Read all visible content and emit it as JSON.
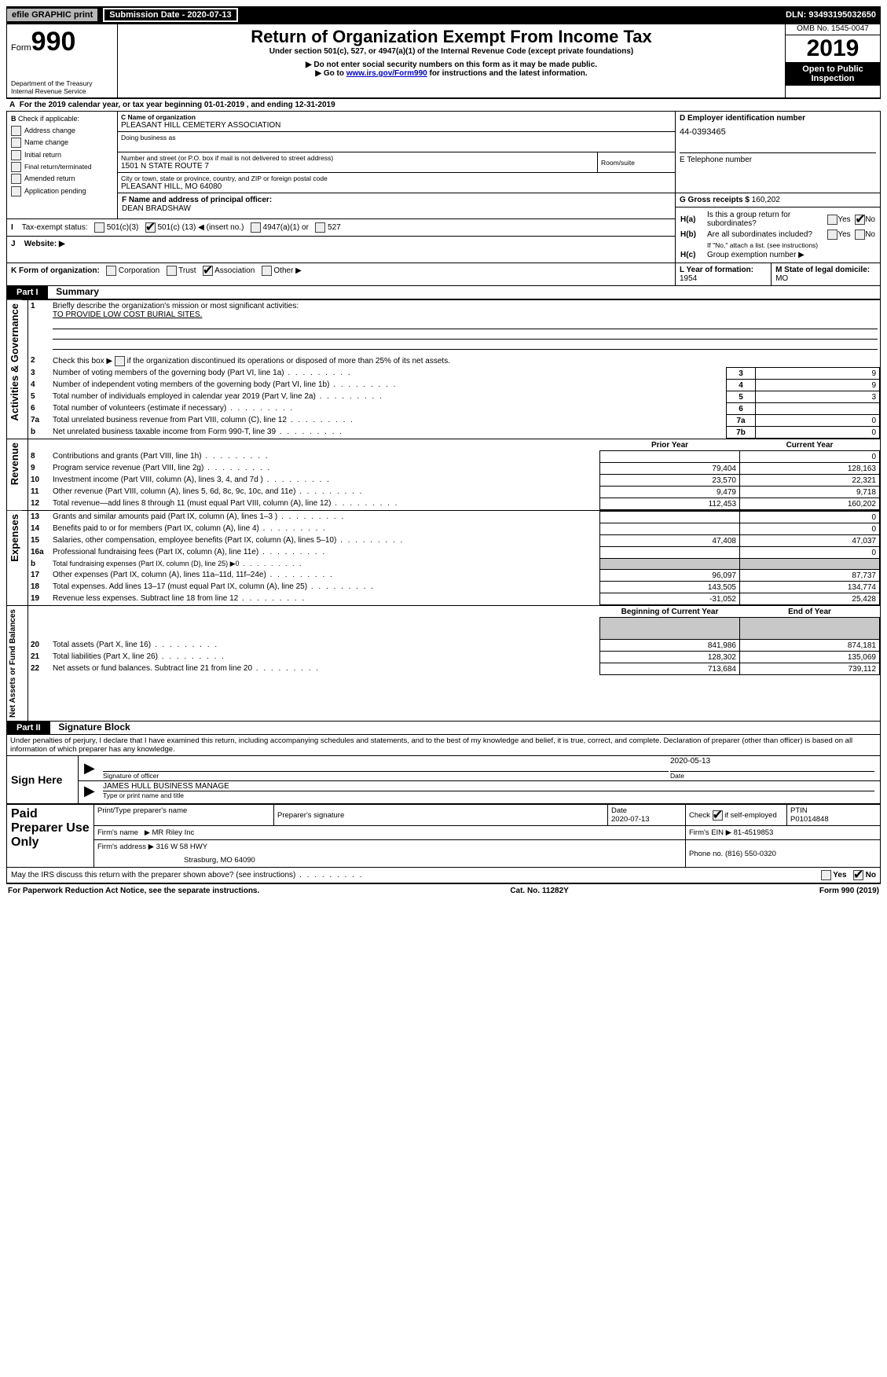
{
  "topbar": {
    "efile": "efile GRAPHIC print",
    "submission": "Submission Date - 2020-07-13",
    "dln": "DLN: 93493195032650"
  },
  "header": {
    "form_prefix": "Form",
    "form_num": "990",
    "dept": "Department of the Treasury",
    "irs": "Internal Revenue Service",
    "title": "Return of Organization Exempt From Income Tax",
    "sub1": "Under section 501(c), 527, or 4947(a)(1) of the Internal Revenue Code (except private foundations)",
    "sub2": "▶ Do not enter social security numbers on this form as it may be made public.",
    "sub3_pre": "▶ Go to ",
    "sub3_link": "www.irs.gov/Form990",
    "sub3_post": " for instructions and the latest information.",
    "omb": "OMB No. 1545-0047",
    "year": "2019",
    "open_public": "Open to Public Inspection"
  },
  "A": {
    "text_pre": "For the 2019 calendar year, or tax year beginning ",
    "begin": "01-01-2019",
    "mid": " , and ending ",
    "end": "12-31-2019"
  },
  "B": {
    "heading": "Check if applicable:",
    "items": [
      "Address change",
      "Name change",
      "Initial return",
      "Final return/terminated",
      "Amended return",
      "Application pending"
    ]
  },
  "C": {
    "label": "C Name of organization",
    "name": "PLEASANT HILL CEMETERY ASSOCIATION",
    "dba_label": "Doing business as",
    "street_label": "Number and street (or P.O. box if mail is not delivered to street address)",
    "street": "1501 N STATE ROUTE 7",
    "room_label": "Room/suite",
    "city_label": "City or town, state or province, country, and ZIP or foreign postal code",
    "city": "PLEASANT HILL, MO  64080"
  },
  "D": {
    "label": "D Employer identification number",
    "value": "44-0393465"
  },
  "E": {
    "label": "E Telephone number",
    "value": ""
  },
  "F": {
    "label": "F  Name and address of principal officer:",
    "value": "DEAN BRADSHAW"
  },
  "G": {
    "label": "G Gross receipts $",
    "value": "160,202"
  },
  "H": {
    "a_label": "Is this a group return for subordinates?",
    "b_label": "Are all subordinates included?",
    "b_note": "If \"No,\" attach a list. (see instructions)",
    "c_label": "Group exemption number ▶",
    "yes": "Yes",
    "no": "No"
  },
  "I": {
    "label": "Tax-exempt status:",
    "opts": {
      "o1": "501(c)(3)",
      "o2_pre": "501(c) (",
      "o2_val": "13",
      "o2_post": ") ◀ (insert no.)",
      "o3": "4947(a)(1) or",
      "o4": "527"
    }
  },
  "J": {
    "label": "Website: ▶"
  },
  "K": {
    "label": "K Form of organization:",
    "opts": [
      "Corporation",
      "Trust",
      "Association",
      "Other ▶"
    ]
  },
  "L": {
    "label": "L Year of formation:",
    "value": "1954"
  },
  "M": {
    "label": "M State of legal domicile:",
    "value": "MO"
  },
  "part1": {
    "header": "Part I",
    "title": "Summary",
    "l1_label": "Briefly describe the organization's mission or most significant activities:",
    "l1_text": "TO PROVIDE LOW COST BURIAL SITES.",
    "l2_label": "Check this box ▶",
    "l2_post": " if the organization discontinued its operations or disposed of more than 25% of its net assets.",
    "rows_gov": [
      {
        "n": "3",
        "label": "Number of voting members of the governing body (Part VI, line 1a)",
        "box": "3",
        "val": "9"
      },
      {
        "n": "4",
        "label": "Number of independent voting members of the governing body (Part VI, line 1b)",
        "box": "4",
        "val": "9"
      },
      {
        "n": "5",
        "label": "Total number of individuals employed in calendar year 2019 (Part V, line 2a)",
        "box": "5",
        "val": "3"
      },
      {
        "n": "6",
        "label": "Total number of volunteers (estimate if necessary)",
        "box": "6",
        "val": ""
      },
      {
        "n": "7a",
        "label": "Total unrelated business revenue from Part VIII, column (C), line 12",
        "box": "7a",
        "val": "0"
      },
      {
        "n": "b",
        "label": "Net unrelated business taxable income from Form 990-T, line 39",
        "box": "7b",
        "val": "0"
      }
    ],
    "hdr_prior": "Prior Year",
    "hdr_curr": "Current Year",
    "rows_rev": [
      {
        "n": "8",
        "label": "Contributions and grants (Part VIII, line 1h)",
        "py": "",
        "cy": "0"
      },
      {
        "n": "9",
        "label": "Program service revenue (Part VIII, line 2g)",
        "py": "79,404",
        "cy": "128,163"
      },
      {
        "n": "10",
        "label": "Investment income (Part VIII, column (A), lines 3, 4, and 7d )",
        "py": "23,570",
        "cy": "22,321"
      },
      {
        "n": "11",
        "label": "Other revenue (Part VIII, column (A), lines 5, 6d, 8c, 9c, 10c, and 11e)",
        "py": "9,479",
        "cy": "9,718"
      },
      {
        "n": "12",
        "label": "Total revenue—add lines 8 through 11 (must equal Part VIII, column (A), line 12)",
        "py": "112,453",
        "cy": "160,202"
      }
    ],
    "rows_exp": [
      {
        "n": "13",
        "label": "Grants and similar amounts paid (Part IX, column (A), lines 1–3 )",
        "py": "",
        "cy": "0"
      },
      {
        "n": "14",
        "label": "Benefits paid to or for members (Part IX, column (A), line 4)",
        "py": "",
        "cy": "0"
      },
      {
        "n": "15",
        "label": "Salaries, other compensation, employee benefits (Part IX, column (A), lines 5–10)",
        "py": "47,408",
        "cy": "47,037"
      },
      {
        "n": "16a",
        "label": "Professional fundraising fees (Part IX, column (A), line 11e)",
        "py": "",
        "cy": "0"
      },
      {
        "n": "b",
        "label": "Total fundraising expenses (Part IX, column (D), line 25) ▶0",
        "py": "GREY",
        "cy": "GREY"
      },
      {
        "n": "17",
        "label": "Other expenses (Part IX, column (A), lines 11a–11d, 11f–24e)",
        "py": "96,097",
        "cy": "87,737"
      },
      {
        "n": "18",
        "label": "Total expenses. Add lines 13–17 (must equal Part IX, column (A), line 25)",
        "py": "143,505",
        "cy": "134,774"
      },
      {
        "n": "19",
        "label": "Revenue less expenses. Subtract line 18 from line 12",
        "py": "-31,052",
        "cy": "25,428"
      }
    ],
    "hdr_boy": "Beginning of Current Year",
    "hdr_eoy": "End of Year",
    "rows_net": [
      {
        "n": "20",
        "label": "Total assets (Part X, line 16)",
        "py": "841,986",
        "cy": "874,181"
      },
      {
        "n": "21",
        "label": "Total liabilities (Part X, line 26)",
        "py": "128,302",
        "cy": "135,069"
      },
      {
        "n": "22",
        "label": "Net assets or fund balances. Subtract line 21 from line 20",
        "py": "713,684",
        "cy": "739,112"
      }
    ],
    "side_gov": "Activities & Governance",
    "side_rev": "Revenue",
    "side_exp": "Expenses",
    "side_net": "Net Assets or Fund Balances"
  },
  "part2": {
    "header": "Part II",
    "title": "Signature Block",
    "perjury": "Under penalties of perjury, I declare that I have examined this return, including accompanying schedules and statements, and to the best of my knowledge and belief, it is true, correct, and complete. Declaration of preparer (other than officer) is based on all information of which preparer has any knowledge."
  },
  "sign": {
    "sign_here": "Sign Here",
    "sig_officer": "Signature of officer",
    "date_label": "Date",
    "date": "2020-05-13",
    "name": "JAMES HULL  BUSINESS MANAGE",
    "name_label": "Type or print name and title"
  },
  "paid": {
    "title": "Paid Preparer Use Only",
    "col_print": "Print/Type preparer's name",
    "col_sig": "Preparer's signature",
    "col_date": "Date",
    "date": "2020-07-13",
    "check_label": "Check",
    "check_post": "if self-employed",
    "ptin_label": "PTIN",
    "ptin": "P01014848",
    "firm_name_label": "Firm's name",
    "firm_name": "MR Riley Inc",
    "firm_ein_label": "Firm's EIN ▶",
    "firm_ein": "81-4519853",
    "firm_addr_label": "Firm's address ▶",
    "firm_addr1": "316 W 58 HWY",
    "firm_addr2": "Strasburg, MO  64090",
    "phone_label": "Phone no.",
    "phone": "(816) 550-0320"
  },
  "footer": {
    "discuss": "May the IRS discuss this return with the preparer shown above? (see instructions)",
    "yes": "Yes",
    "no": "No",
    "pra": "For Paperwork Reduction Act Notice, see the separate instructions.",
    "cat": "Cat. No. 11282Y",
    "form": "Form 990 (2019)"
  }
}
